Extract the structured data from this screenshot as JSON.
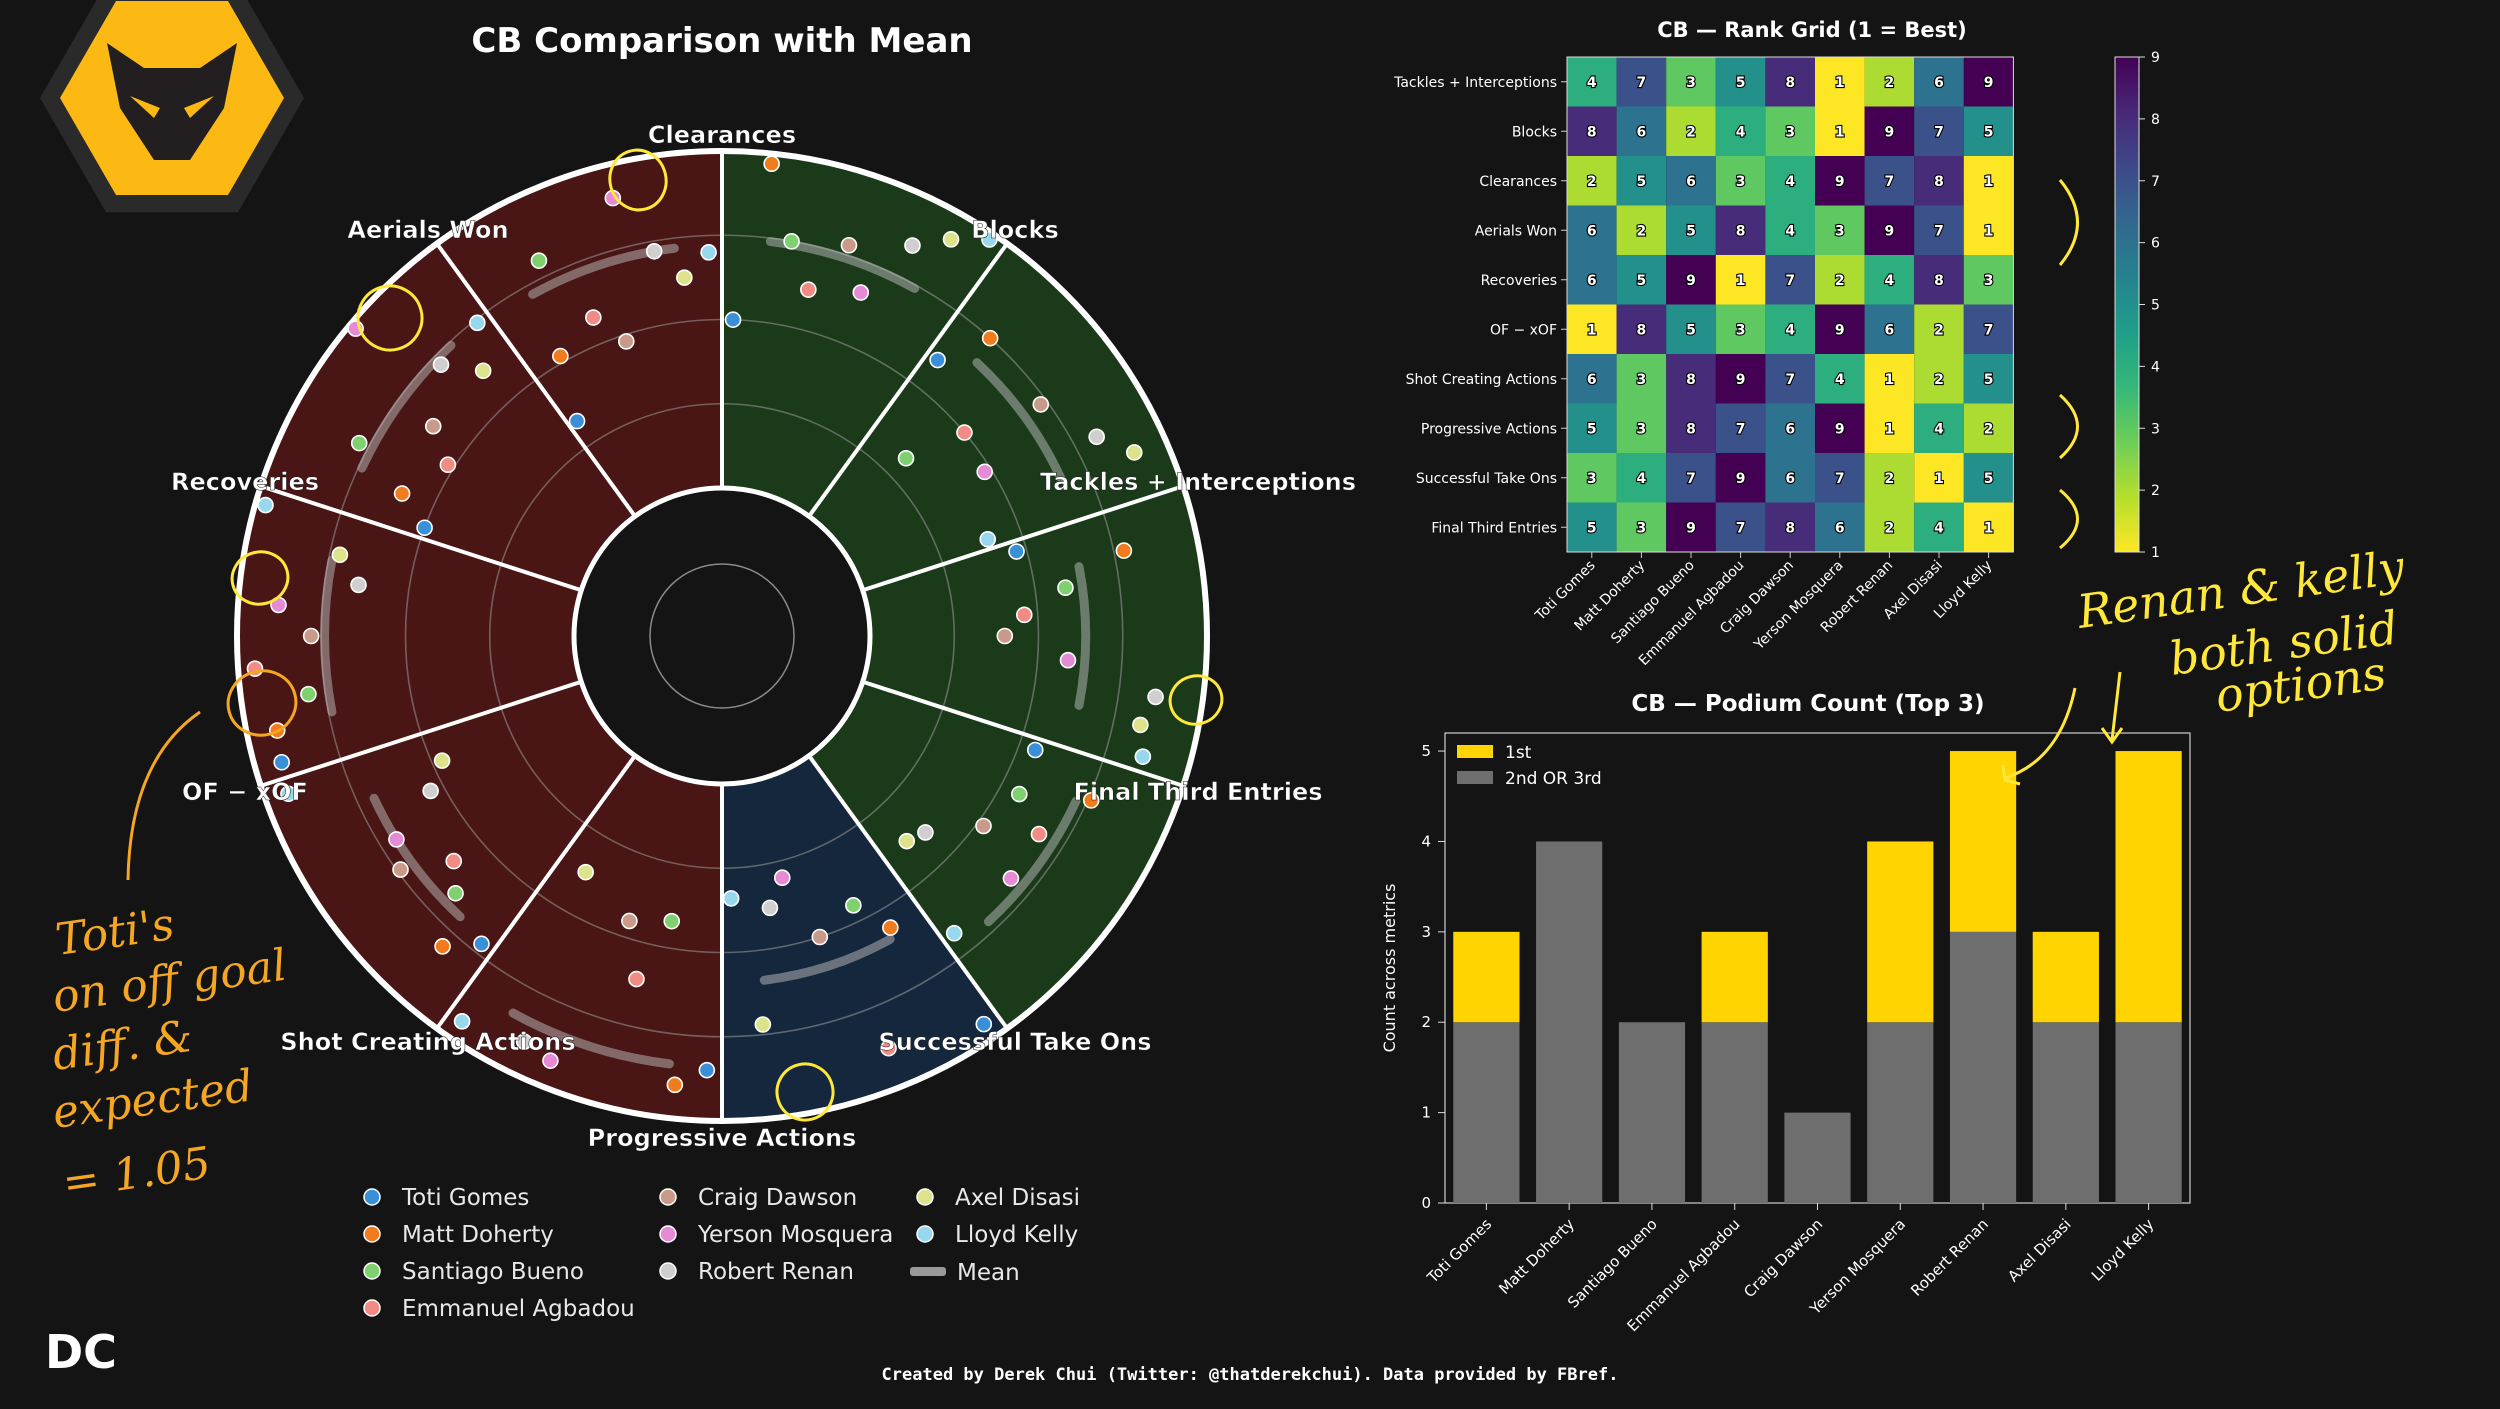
{
  "brand_mark": "DC",
  "footer_credit": "Created by Derek Chui (Twitter: @thatderekchui). Data provided by FBref.",
  "colors": {
    "background": "#141414",
    "wolves_gold": "#FDB913",
    "defensive_sector": "#4a1515",
    "goalkeeping_sector": "#14273d",
    "attacking_sector": "#1a3a1a",
    "first_place": "#FFD400",
    "podium_other": "#6e6e6e",
    "annotation_yellow": "#ffe83a",
    "annotation_orange": "#f5a623"
  },
  "annotations": {
    "toti_note": [
      "Toti's",
      "on off goal",
      "diff. &",
      "expected",
      "= 1.05"
    ],
    "renan_kelly_note": [
      "Renan & kelly",
      "both solid",
      "options"
    ]
  },
  "chart_data": [
    {
      "type": "radial-scatter",
      "title": "CB Comparison with Mean",
      "metrics": [
        {
          "name": "Clearances",
          "group": "defensive"
        },
        {
          "name": "Blocks",
          "group": "defensive"
        },
        {
          "name": "Tackles + Interceptions",
          "group": "defensive"
        },
        {
          "name": "Final Third Entries",
          "group": "attacking"
        },
        {
          "name": "Successful Take Ons",
          "group": "attacking"
        },
        {
          "name": "Progressive Actions",
          "group": "attacking"
        },
        {
          "name": "Shot Creating Actions",
          "group": "attacking"
        },
        {
          "name": "OF − xOF",
          "group": "goalkeeping"
        },
        {
          "name": "Recoveries",
          "group": "defensive"
        },
        {
          "name": "Aerials Won",
          "group": "defensive"
        }
      ],
      "players": [
        {
          "name": "Toti Gomes",
          "color": "#3a8fd9"
        },
        {
          "name": "Matt Doherty",
          "color": "#f07c1e"
        },
        {
          "name": "Santiago Bueno",
          "color": "#7fd16f"
        },
        {
          "name": "Emmanuel Agbadou",
          "color": "#f18b83"
        },
        {
          "name": "Craig Dawson",
          "color": "#c99a8a"
        },
        {
          "name": "Yerson Mosquera",
          "color": "#e58ad4"
        },
        {
          "name": "Robert Renan",
          "color": "#cfcfcf"
        },
        {
          "name": "Axel Disasi",
          "color": "#dde38a"
        },
        {
          "name": "Lloyd Kelly",
          "color": "#98d8ee"
        }
      ],
      "legend": {
        "mean_label": "Mean",
        "position": "bottom"
      },
      "values": [
        [
          0.92,
          0.91,
          0.8,
          0.95,
          0.78,
          0.88,
          0.65,
          0.72,
          0.97
        ],
        [
          0.5,
          0.6,
          0.78,
          0.52,
          0.62,
          0.98,
          0.72,
          0.62,
          0.74
        ],
        [
          0.33,
          0.52,
          0.8,
          0.58,
          0.48,
          0.9,
          0.72,
          0.63,
          0.7
        ],
        [
          0.5,
          0.97,
          0.75,
          0.62,
          0.78,
          0.66,
          0.85,
          0.92,
          0.98
        ],
        [
          0.6,
          0.75,
          0.32,
          0.5,
          0.73,
          0.48,
          0.82,
          0.9,
          0.4
        ],
        [
          0.47,
          0.78,
          0.59,
          0.46,
          0.4,
          0.59,
          0.86,
          0.83,
          0.86
        ],
        [
          0.55,
          0.76,
          0.56,
          0.67,
          0.52,
          0.68,
          0.4,
          0.38,
          0.68
        ],
        [
          0.95,
          0.56,
          0.45,
          0.88,
          0.5,
          0.3,
          0.38,
          0.72,
          0.34
        ],
        [
          0.85,
          0.9,
          0.42,
          0.61,
          0.45,
          0.92,
          0.9,
          0.37,
          0.94
        ],
        [
          0.72,
          0.8,
          0.66,
          0.6,
          0.74,
          0.7,
          0.54,
          0.47,
          0.93
        ]
      ],
      "means": [
        0.74,
        0.74,
        0.72,
        0.74,
        0.67,
        0.64,
        0.72,
        0.59,
        0.84,
        0.7
      ]
    },
    {
      "type": "heatmap",
      "title": "CB — Rank Grid (1 = Best)",
      "rows": [
        "Tackles + Interceptions",
        "Blocks",
        "Clearances",
        "Aerials Won",
        "Recoveries",
        "OF − xOF",
        "Shot Creating Actions",
        "Progressive Actions",
        "Successful Take Ons",
        "Final Third Entries"
      ],
      "columns": [
        "Toti Gomes",
        "Matt Doherty",
        "Santiago Bueno",
        "Emmanuel Agbadou",
        "Craig Dawson",
        "Yerson Mosquera",
        "Robert Renan",
        "Axel Disasi",
        "Lloyd Kelly"
      ],
      "values": [
        [
          4,
          7,
          3,
          5,
          8,
          1,
          2,
          6,
          9
        ],
        [
          8,
          6,
          2,
          4,
          3,
          1,
          9,
          7,
          5
        ],
        [
          2,
          5,
          6,
          3,
          4,
          9,
          7,
          8,
          1
        ],
        [
          6,
          2,
          5,
          8,
          4,
          3,
          9,
          7,
          1
        ],
        [
          6,
          5,
          9,
          1,
          7,
          2,
          4,
          8,
          3
        ],
        [
          1,
          8,
          5,
          3,
          4,
          9,
          6,
          2,
          7
        ],
        [
          6,
          3,
          8,
          9,
          7,
          4,
          1,
          2,
          5
        ],
        [
          5,
          3,
          8,
          7,
          6,
          9,
          1,
          4,
          2
        ],
        [
          3,
          4,
          7,
          9,
          6,
          7,
          2,
          1,
          5
        ],
        [
          5,
          3,
          9,
          7,
          8,
          6,
          2,
          4,
          1
        ]
      ],
      "colorscale": "viridis_r",
      "colorbar_ticks": [
        1,
        2,
        3,
        4,
        5,
        6,
        7,
        8,
        9
      ]
    },
    {
      "type": "bar",
      "stacked": true,
      "title": "CB — Podium Count (Top 3)",
      "ylabel": "Count across metrics",
      "categories": [
        "Toti Gomes",
        "Matt Doherty",
        "Santiago Bueno",
        "Emmanuel Agbadou",
        "Craig Dawson",
        "Yerson Mosquera",
        "Robert Renan",
        "Axel Disasi",
        "Lloyd Kelly"
      ],
      "series": [
        {
          "name": "2nd OR 3rd",
          "values": [
            2,
            4,
            2,
            2,
            1,
            2,
            3,
            2,
            2
          ],
          "color": "#6e6e6e"
        },
        {
          "name": "1st",
          "values": [
            1,
            0,
            0,
            1,
            0,
            2,
            2,
            1,
            3
          ],
          "color": "#FFD400"
        }
      ],
      "ylim": [
        0,
        5.2
      ],
      "yticks": [
        0,
        1,
        2,
        3,
        4,
        5
      ],
      "legend_position": "top-left"
    }
  ]
}
